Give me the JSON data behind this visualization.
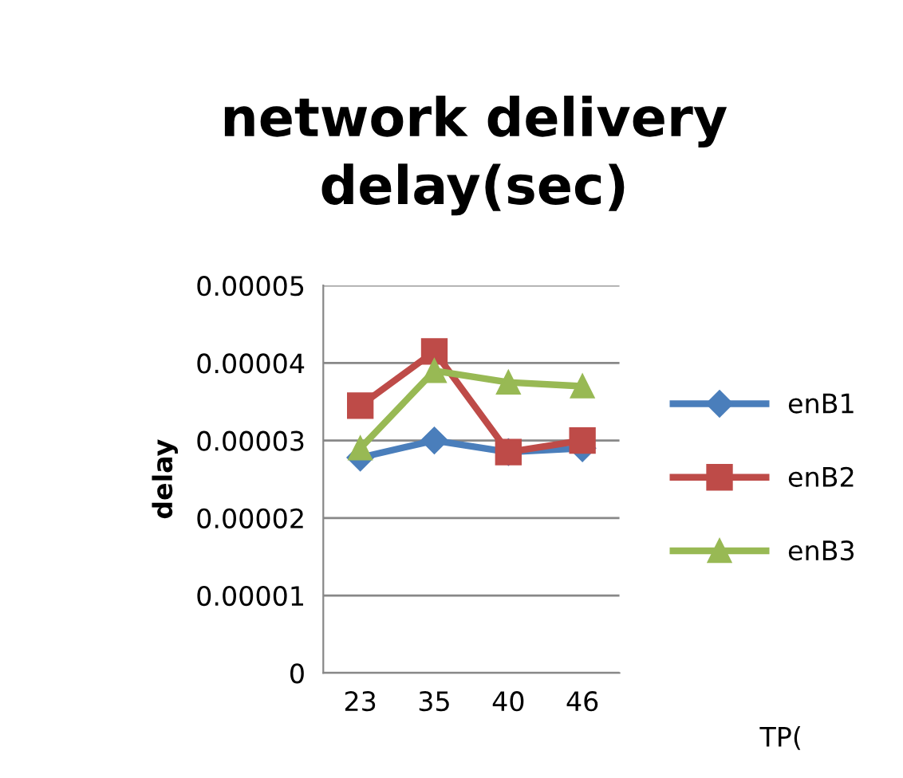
{
  "chart_data": {
    "type": "line",
    "title": "network delivery\ndelay(sec)",
    "annotations": [
      "TP("
    ],
    "ylabel": "delay",
    "categories": [
      "23",
      "35",
      "40",
      "46"
    ],
    "series": [
      {
        "name": "enB1",
        "color": "#4a7ebb",
        "marker": "diamond",
        "values": [
          2.78e-05,
          3e-05,
          2.85e-05,
          2.9e-05
        ]
      },
      {
        "name": "enB2",
        "color": "#be4b48",
        "marker": "square",
        "values": [
          3.45e-05,
          4.15e-05,
          2.85e-05,
          3e-05
        ]
      },
      {
        "name": "enB3",
        "color": "#98b954",
        "marker": "triangle",
        "values": [
          2.9e-05,
          3.9e-05,
          3.75e-05,
          3.7e-05
        ]
      }
    ],
    "ylim": [
      0,
      5e-05
    ],
    "yticks": [
      {
        "value": 0,
        "label": "0"
      },
      {
        "value": 1e-05,
        "label": "0.00001"
      },
      {
        "value": 2e-05,
        "label": "0.00002"
      },
      {
        "value": 3e-05,
        "label": "0.00003"
      },
      {
        "value": 4e-05,
        "label": "0.00004"
      },
      {
        "value": 5e-05,
        "label": "0.00005"
      }
    ],
    "grid": "y",
    "legend": "right",
    "line_style": "solid"
  }
}
